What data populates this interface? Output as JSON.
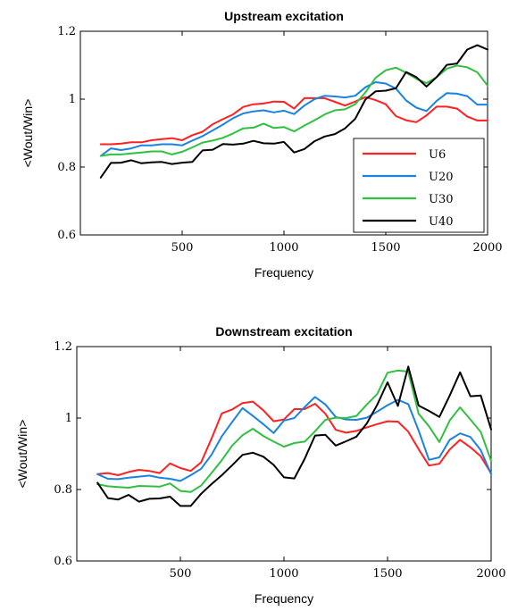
{
  "chart_data": [
    {
      "type": "line",
      "title": "Upstream excitation",
      "xlabel": "Frequency",
      "ylabel": "<Wout/Win>",
      "xlim": [
        0,
        2000
      ],
      "ylim": [
        0.6,
        1.2
      ],
      "xticks": [
        "500",
        "1000",
        "1500",
        "2000"
      ],
      "yticks": [
        "0.6",
        "0.8",
        "1",
        "1.2"
      ],
      "grid": false,
      "legend": "bottom-right",
      "x": [
        100,
        150,
        200,
        250,
        300,
        350,
        400,
        450,
        500,
        550,
        600,
        650,
        700,
        750,
        800,
        850,
        900,
        950,
        1000,
        1050,
        1100,
        1150,
        1200,
        1250,
        1300,
        1350,
        1400,
        1450,
        1500,
        1550,
        1600,
        1650,
        1700,
        1750,
        1800,
        1850,
        1900,
        1950,
        2000
      ],
      "series": [
        {
          "name": "U6",
          "color": "#ff2020",
          "values": [
            0.867,
            0.867,
            0.869,
            0.873,
            0.873,
            0.879,
            0.882,
            0.885,
            0.879,
            0.894,
            0.904,
            0.926,
            0.941,
            0.955,
            0.977,
            0.985,
            0.987,
            0.993,
            0.992,
            0.972,
            1.003,
            1.003,
            1.003,
            0.992,
            0.981,
            0.993,
            1.006,
            0.997,
            0.985,
            0.95,
            0.938,
            0.932,
            0.952,
            0.978,
            0.978,
            0.972,
            0.949,
            0.937,
            0.937
          ]
        },
        {
          "name": "U20",
          "color": "#1a82e0",
          "values": [
            0.833,
            0.855,
            0.85,
            0.855,
            0.864,
            0.864,
            0.867,
            0.867,
            0.864,
            0.878,
            0.891,
            0.908,
            0.925,
            0.944,
            0.958,
            0.964,
            0.967,
            0.961,
            0.966,
            0.956,
            0.981,
            1.0,
            1.01,
            1.008,
            1.005,
            1.01,
            1.035,
            1.05,
            1.046,
            1.031,
            0.996,
            0.975,
            0.965,
            0.995,
            1.018,
            1.016,
            1.009,
            0.984,
            0.984
          ]
        },
        {
          "name": "U30",
          "color": "#30c040",
          "values": [
            0.833,
            0.837,
            0.837,
            0.84,
            0.843,
            0.846,
            0.846,
            0.837,
            0.845,
            0.858,
            0.872,
            0.878,
            0.886,
            0.899,
            0.914,
            0.916,
            0.928,
            0.915,
            0.918,
            0.905,
            0.922,
            0.938,
            0.955,
            0.967,
            0.97,
            0.985,
            1.02,
            1.063,
            1.085,
            1.093,
            1.078,
            1.06,
            1.047,
            1.065,
            1.09,
            1.099,
            1.094,
            1.079,
            1.04
          ]
        },
        {
          "name": "U40",
          "color": "#000000",
          "values": [
            0.769,
            0.812,
            0.813,
            0.82,
            0.811,
            0.814,
            0.815,
            0.809,
            0.813,
            0.815,
            0.849,
            0.851,
            0.868,
            0.866,
            0.869,
            0.877,
            0.87,
            0.869,
            0.874,
            0.843,
            0.853,
            0.876,
            0.89,
            0.897,
            0.914,
            0.942,
            0.999,
            1.023,
            1.025,
            1.032,
            1.08,
            1.065,
            1.037,
            1.065,
            1.101,
            1.105,
            1.146,
            1.159,
            1.146
          ]
        }
      ]
    },
    {
      "type": "line",
      "title": "Downstream excitation",
      "xlabel": "Frequency",
      "ylabel": "<Wout/Win>",
      "xlim": [
        0,
        2000
      ],
      "ylim": [
        0.6,
        1.2
      ],
      "xticks": [
        "500",
        "1000",
        "1500",
        "2000"
      ],
      "yticks": [
        "0.6",
        "0.8",
        "1",
        "1.2"
      ],
      "grid": false,
      "x": [
        100,
        150,
        200,
        250,
        300,
        350,
        400,
        450,
        500,
        550,
        600,
        650,
        700,
        750,
        800,
        850,
        900,
        950,
        1000,
        1050,
        1100,
        1150,
        1200,
        1250,
        1300,
        1350,
        1400,
        1450,
        1500,
        1550,
        1600,
        1650,
        1700,
        1750,
        1800,
        1850,
        1900,
        1950,
        2000
      ],
      "series": [
        {
          "name": "U6",
          "color": "#ff2020",
          "values": [
            0.843,
            0.846,
            0.84,
            0.849,
            0.855,
            0.852,
            0.846,
            0.873,
            0.86,
            0.852,
            0.876,
            0.942,
            1.013,
            1.024,
            1.042,
            1.046,
            1.022,
            0.991,
            0.996,
            1.025,
            1.025,
            1.04,
            1.012,
            0.967,
            0.959,
            0.964,
            0.974,
            0.983,
            0.991,
            0.99,
            0.962,
            0.913,
            0.867,
            0.872,
            0.912,
            0.939,
            0.918,
            0.893,
            0.845
          ]
        },
        {
          "name": "U20",
          "color": "#1a82e0",
          "values": [
            0.843,
            0.83,
            0.829,
            0.833,
            0.836,
            0.839,
            0.833,
            0.83,
            0.824,
            0.84,
            0.858,
            0.897,
            0.949,
            0.989,
            1.028,
            1.006,
            0.983,
            0.958,
            0.993,
            1.0,
            1.031,
            1.059,
            1.038,
            1.003,
            0.996,
            0.995,
            1.001,
            1.018,
            1.036,
            1.051,
            1.039,
            0.965,
            0.883,
            0.89,
            0.939,
            0.957,
            0.947,
            0.91,
            0.843
          ]
        },
        {
          "name": "U30",
          "color": "#30c040",
          "values": [
            0.815,
            0.809,
            0.807,
            0.805,
            0.81,
            0.809,
            0.808,
            0.817,
            0.796,
            0.793,
            0.811,
            0.846,
            0.882,
            0.923,
            0.952,
            0.97,
            0.95,
            0.934,
            0.92,
            0.93,
            0.934,
            0.963,
            0.995,
            1.001,
            1.0,
            1.006,
            1.038,
            1.067,
            1.127,
            1.133,
            1.13,
            1.012,
            0.977,
            0.933,
            0.993,
            1.03,
            0.996,
            0.961,
            0.88
          ]
        },
        {
          "name": "U40",
          "color": "#000000",
          "values": [
            0.819,
            0.776,
            0.772,
            0.785,
            0.766,
            0.774,
            0.775,
            0.78,
            0.754,
            0.754,
            0.788,
            0.815,
            0.84,
            0.868,
            0.897,
            0.903,
            0.892,
            0.869,
            0.834,
            0.831,
            0.886,
            0.951,
            0.953,
            0.923,
            0.935,
            0.948,
            0.985,
            1.037,
            1.1,
            1.034,
            1.144,
            1.035,
            1.02,
            1.003,
            1.063,
            1.128,
            1.061,
            1.063,
            0.968
          ]
        }
      ]
    }
  ]
}
